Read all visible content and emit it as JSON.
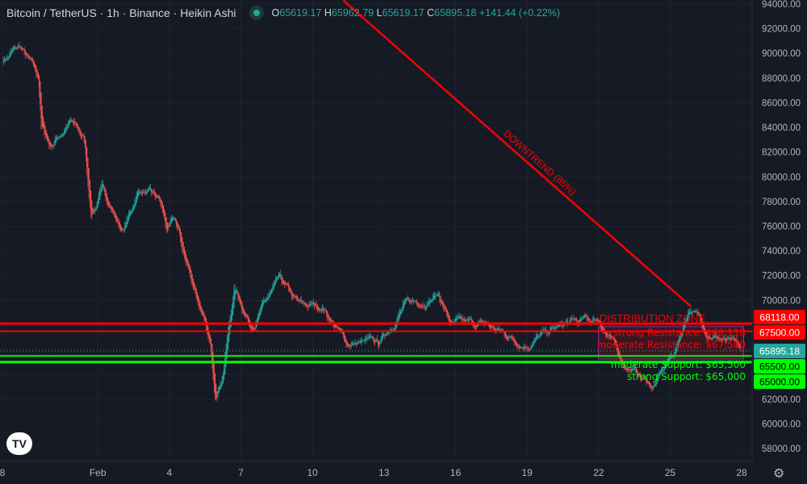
{
  "header": {
    "title": "Bitcoin / TetherUS · 1h · Binance · Heikin Ashi",
    "open_label": "O",
    "open": "65619.17",
    "high_label": "H",
    "high": "65962.79",
    "low_label": "L",
    "low": "65619.17",
    "close_label": "C",
    "close": "65895.18",
    "change": "+141.44 (+0.22%)",
    "status_icon": "market-open-dot-icon"
  },
  "logo": "TV",
  "settings_icon": "gear-icon",
  "colors": {
    "up": "#26a69a",
    "down": "#ef5350",
    "resistance": "#ff0000",
    "support": "#00ff00",
    "current": "#26a69a",
    "zone_border": "#9c27b0",
    "trendline": "#ff0000"
  },
  "chart_data": {
    "type": "candlestick",
    "style": "Heikin Ashi",
    "interval": "1h",
    "ylim": [
      57000,
      94300
    ],
    "yticks": [
      58000,
      60000,
      62000,
      64000,
      66000,
      68000,
      70000,
      72000,
      74000,
      76000,
      78000,
      80000,
      82000,
      84000,
      86000,
      88000,
      90000,
      92000,
      94000
    ],
    "xticks": [
      {
        "label": "8",
        "date": "2024-01-28"
      },
      {
        "label": "Feb",
        "date": "2024-02-01"
      },
      {
        "label": "4",
        "date": "2024-02-04"
      },
      {
        "label": "7",
        "date": "2024-02-07"
      },
      {
        "label": "10",
        "date": "2024-02-10"
      },
      {
        "label": "13",
        "date": "2024-02-13"
      },
      {
        "label": "16",
        "date": "2024-02-16"
      },
      {
        "label": "19",
        "date": "2024-02-19"
      },
      {
        "label": "22",
        "date": "2024-02-22"
      },
      {
        "label": "25",
        "date": "2024-02-25"
      },
      {
        "label": "28",
        "date": "2024-02-28"
      }
    ],
    "grid": true,
    "price_path": [
      [
        "2024-01-28T00",
        89500
      ],
      [
        "2024-01-28T17",
        90500
      ],
      [
        "2024-01-29T12",
        88000
      ],
      [
        "2024-01-29T15",
        84000
      ],
      [
        "2024-01-30T00",
        82500
      ],
      [
        "2024-01-30T20",
        84500
      ],
      [
        "2024-01-31T10",
        83000
      ],
      [
        "2024-01-31T17",
        77000
      ],
      [
        "2024-02-01T05",
        79000
      ],
      [
        "2024-02-02T01",
        75500
      ],
      [
        "2024-02-02T17",
        79000
      ],
      [
        "2024-02-03T14",
        78000
      ],
      [
        "2024-02-03T22",
        75500
      ],
      [
        "2024-02-04T05",
        76500
      ],
      [
        "2024-02-04T17",
        73000
      ],
      [
        "2024-02-05T05",
        70000
      ],
      [
        "2024-02-05T17",
        66000
      ],
      [
        "2024-02-05T22",
        62500
      ],
      [
        "2024-02-06T05",
        64000
      ],
      [
        "2024-02-06T17",
        71000
      ],
      [
        "2024-02-07T10",
        68000
      ],
      [
        "2024-02-08T14",
        71500
      ],
      [
        "2024-02-09T10",
        69500
      ],
      [
        "2024-02-10T10",
        69500
      ],
      [
        "2024-02-11T10",
        66500
      ],
      [
        "2024-02-12T19",
        66500
      ],
      [
        "2024-02-13T19",
        69500
      ],
      [
        "2024-02-15T07",
        70500
      ],
      [
        "2024-02-15T19",
        68000
      ],
      [
        "2024-02-17T05",
        68000
      ],
      [
        "2024-02-18T22",
        66500
      ],
      [
        "2024-02-20T14",
        68000
      ],
      [
        "2024-02-22T00",
        68500
      ],
      [
        "2024-02-23T00",
        65000
      ],
      [
        "2024-02-24T07",
        63000
      ],
      [
        "2024-02-25T05",
        66000
      ],
      [
        "2024-02-25T19",
        69500
      ],
      [
        "2024-02-26T14",
        67500
      ],
      [
        "2024-02-27T23",
        65895.18
      ]
    ],
    "levels": [
      {
        "name": "strong Resistance",
        "price": 68118,
        "axis_label": "68118.00",
        "text": "strong Resistance: $68,118",
        "color": "#ff0000"
      },
      {
        "name": "moderate Resistance",
        "price": 67500,
        "axis_label": "67500.00",
        "text": "moderate Resistance: $67,500",
        "color": "#ff0000"
      },
      {
        "name": "moderate Support",
        "price": 65500,
        "axis_label": "65500.00",
        "text": "moderate Support: $65,500",
        "color": "#00ff00"
      },
      {
        "name": "strong Support",
        "price": 65000,
        "axis_label": "65000.00",
        "text": "strong Support: $65,000",
        "color": "#00ff00"
      }
    ],
    "current_price": {
      "price": 65895.18,
      "axis_label": "65895.18"
    },
    "zone": {
      "label": "DISTRIBUTION ZONE",
      "from": "2024-02-22T00",
      "to": "2024-02-28T02",
      "top": 67870,
      "bottom": 65250
    },
    "trendline": {
      "label": "DOWNTREND (85%)",
      "from": [
        "2024-02-11T07",
        94300
      ],
      "to": [
        "2024-02-25T21",
        69500
      ]
    }
  }
}
